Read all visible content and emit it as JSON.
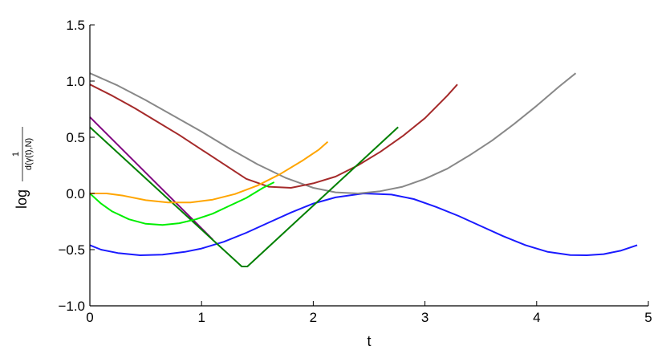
{
  "chart_data": {
    "type": "line",
    "xlabel": "t",
    "ylabel": {
      "prefix": "log",
      "numerator": "1",
      "denominator": "d(γ(t),N)"
    },
    "xlim": [
      0,
      5
    ],
    "ylim": [
      -1.0,
      1.5
    ],
    "xticks": [
      0,
      1,
      2,
      3,
      4,
      5
    ],
    "xtick_labels": [
      "0",
      "1",
      "2",
      "3",
      "4",
      "5"
    ],
    "yticks": [
      -1.0,
      -0.5,
      0.0,
      0.5,
      1.0,
      1.5
    ],
    "ytick_labels": [
      "−1.0",
      "−0.5",
      "0.0",
      "0.5",
      "1.0",
      "1.5"
    ],
    "grid": false,
    "legend": "none",
    "series": [
      {
        "color": "#1a1aff",
        "x": [
          0,
          0.1,
          0.25,
          0.45,
          0.65,
          0.85,
          1.0,
          1.2,
          1.4,
          1.6,
          1.8,
          2.0,
          2.2,
          2.45,
          2.7,
          2.9,
          3.1,
          3.3,
          3.5,
          3.7,
          3.9,
          4.1,
          4.3,
          4.45,
          4.6,
          4.75,
          4.9
        ],
        "y": [
          -0.46,
          -0.5,
          -0.53,
          -0.55,
          -0.545,
          -0.52,
          -0.49,
          -0.43,
          -0.35,
          -0.26,
          -0.17,
          -0.09,
          -0.035,
          0.0,
          -0.01,
          -0.05,
          -0.12,
          -0.2,
          -0.29,
          -0.38,
          -0.46,
          -0.52,
          -0.548,
          -0.55,
          -0.54,
          -0.51,
          -0.46
        ]
      },
      {
        "color": "#888888",
        "x": [
          0,
          0.25,
          0.5,
          0.75,
          1.0,
          1.25,
          1.5,
          1.75,
          2.0,
          2.2,
          2.4,
          2.6,
          2.8,
          3.0,
          3.2,
          3.4,
          3.6,
          3.8,
          4.0,
          4.2,
          4.35
        ],
        "y": [
          1.07,
          0.96,
          0.83,
          0.69,
          0.55,
          0.4,
          0.26,
          0.14,
          0.05,
          0.01,
          0.0,
          0.02,
          0.06,
          0.13,
          0.22,
          0.34,
          0.47,
          0.62,
          0.78,
          0.95,
          1.07
        ]
      },
      {
        "color": "#a52a2a",
        "x": [
          0,
          0.2,
          0.4,
          0.6,
          0.8,
          1.0,
          1.2,
          1.4,
          1.6,
          1.8,
          2.0,
          2.2,
          2.4,
          2.6,
          2.8,
          3.0,
          3.2,
          3.29
        ],
        "y": [
          0.97,
          0.87,
          0.76,
          0.64,
          0.52,
          0.39,
          0.26,
          0.13,
          0.06,
          0.05,
          0.09,
          0.15,
          0.25,
          0.37,
          0.51,
          0.67,
          0.87,
          0.97
        ]
      },
      {
        "color": "#800080",
        "x": [
          0,
          1.1
        ],
        "y": [
          0.68,
          -0.41
        ]
      },
      {
        "color": "#008000",
        "x": [
          0,
          1.36,
          1.41,
          2.76
        ],
        "y": [
          0.59,
          -0.65,
          -0.65,
          0.59
        ]
      },
      {
        "color": "#00ee00",
        "x": [
          0,
          0.1,
          0.2,
          0.35,
          0.5,
          0.65,
          0.8,
          0.95,
          1.1,
          1.25,
          1.4,
          1.55,
          1.65
        ],
        "y": [
          0.0,
          -0.09,
          -0.16,
          -0.23,
          -0.27,
          -0.28,
          -0.265,
          -0.23,
          -0.18,
          -0.11,
          -0.04,
          0.05,
          0.1
        ]
      },
      {
        "color": "#ffa500",
        "x": [
          0,
          0.15,
          0.3,
          0.5,
          0.7,
          0.9,
          1.1,
          1.3,
          1.5,
          1.7,
          1.9,
          2.05,
          2.13
        ],
        "y": [
          0.0,
          0.0,
          -0.02,
          -0.06,
          -0.08,
          -0.08,
          -0.055,
          -0.005,
          0.07,
          0.17,
          0.29,
          0.39,
          0.46
        ]
      }
    ]
  }
}
